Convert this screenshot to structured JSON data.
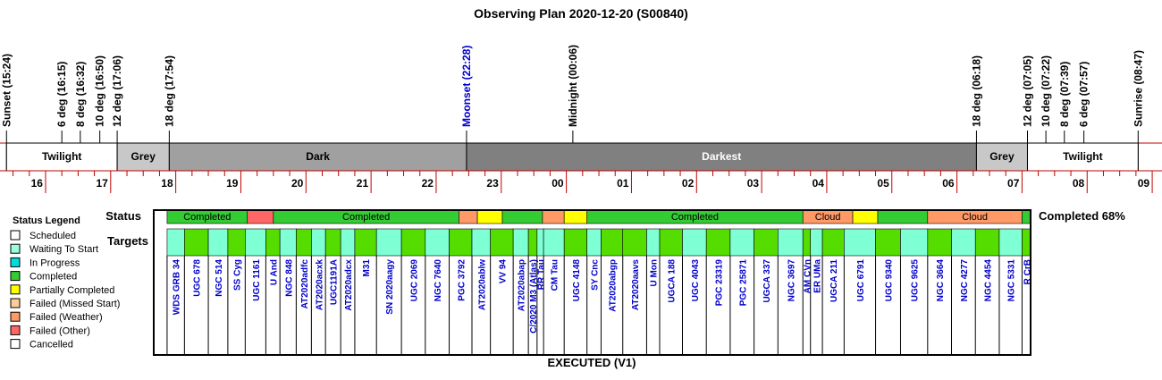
{
  "title": "Observing Plan 2020-12-20 (S00840)",
  "footer": "EXECUTED (V1)",
  "row_labels": {
    "status": "Status",
    "targets": "Targets"
  },
  "completion": "Completed 68%",
  "colors": {
    "line": "#c00000",
    "Twilight": "#ffffff",
    "Grey": "#c8c8c8",
    "Dark": "#a0a0a0",
    "Darkest": "#808080",
    "Completed": "#33cc33",
    "Partially Completed": "#ffff00",
    "Failed (Weather)": "#ff9966",
    "Failed (Other)": "#ff6666",
    "Waiting To Start": "#99ffdd",
    "target_target": "#7fffd4",
    "target_completed": "#55dd00",
    "moonset_text": "#0000cc"
  },
  "legend": {
    "title": "Status Legend",
    "items": [
      {
        "label": "Scheduled",
        "color": "#ffffff"
      },
      {
        "label": "Waiting To Start",
        "color": "#99ffdd"
      },
      {
        "label": "In Progress",
        "color": "#00dddd"
      },
      {
        "label": "Completed",
        "color": "#33cc33"
      },
      {
        "label": "Partially Completed",
        "color": "#ffff00"
      },
      {
        "label": "Failed (Missed Start)",
        "color": "#ffcc99"
      },
      {
        "label": "Failed (Weather)",
        "color": "#ff9966"
      },
      {
        "label": "Failed (Other)",
        "color": "#ff6666"
      },
      {
        "label": "Cancelled",
        "color": "#ffffff"
      }
    ]
  },
  "timeline": {
    "start_hour": 15.3,
    "end_hour": 33.15,
    "hour_labels": [
      "16",
      "17",
      "18",
      "19",
      "20",
      "21",
      "22",
      "23",
      "00",
      "01",
      "02",
      "03",
      "04",
      "05",
      "06",
      "07",
      "08",
      "09"
    ],
    "events": [
      {
        "label": "Sunset (15:24)",
        "time": "15:24"
      },
      {
        "label": "6 deg (16:15)",
        "time": "16:15"
      },
      {
        "label": "8 deg (16:32)",
        "time": "16:32"
      },
      {
        "label": "10 deg (16:50)",
        "time": "16:50"
      },
      {
        "label": "12 deg (17:06)",
        "time": "17:06"
      },
      {
        "label": "18 deg (17:54)",
        "time": "17:54"
      },
      {
        "label": "Moonset (22:28)",
        "time": "22:28",
        "moon": true
      },
      {
        "label": "Midnight (00:06)",
        "time": "24:06"
      },
      {
        "label": "18 deg (06:18)",
        "time": "30:18"
      },
      {
        "label": "12 deg (07:05)",
        "time": "31:05"
      },
      {
        "label": "10 deg (07:22)",
        "time": "31:22"
      },
      {
        "label": "8 deg (07:39)",
        "time": "31:39"
      },
      {
        "label": "6 deg (07:57)",
        "time": "31:57"
      },
      {
        "label": "Sunrise (08:47)",
        "time": "32:47"
      }
    ],
    "bands": [
      {
        "label": "Twilight",
        "start": "15:24",
        "end": "17:06",
        "kind": "Twilight"
      },
      {
        "label": "Grey",
        "start": "17:06",
        "end": "17:54",
        "kind": "Grey"
      },
      {
        "label": "Dark",
        "start": "17:54",
        "end": "22:28",
        "kind": "Dark"
      },
      {
        "label": "Darkest",
        "start": "22:28",
        "end": "30:18",
        "kind": "Darkest"
      },
      {
        "label": "Grey",
        "start": "30:18",
        "end": "31:05",
        "kind": "Grey"
      },
      {
        "label": "Twilight",
        "start": "31:05",
        "end": "32:47",
        "kind": "Twilight"
      }
    ]
  },
  "status_segments": [
    {
      "start": "17:52",
      "end": "19:06",
      "status": "Completed",
      "label": "Completed"
    },
    {
      "start": "19:06",
      "end": "19:30",
      "status": "Failed (Other)",
      "label": ""
    },
    {
      "start": "19:30",
      "end": "22:21",
      "status": "Completed",
      "label": "Completed"
    },
    {
      "start": "22:21",
      "end": "22:38",
      "status": "Failed (Weather)",
      "label": ""
    },
    {
      "start": "22:38",
      "end": "23:01",
      "status": "Partially Completed",
      "label": ""
    },
    {
      "start": "23:01",
      "end": "23:38",
      "status": "Completed",
      "label": ""
    },
    {
      "start": "23:38",
      "end": "23:58",
      "status": "Failed (Weather)",
      "label": ""
    },
    {
      "start": "23:58",
      "end": "24:19",
      "status": "Partially Completed",
      "label": ""
    },
    {
      "start": "24:19",
      "end": "27:38",
      "status": "Completed",
      "label": "Completed"
    },
    {
      "start": "27:38",
      "end": "28:24",
      "status": "Failed (Weather)",
      "label": "Cloud"
    },
    {
      "start": "28:24",
      "end": "28:47",
      "status": "Partially Completed",
      "label": ""
    },
    {
      "start": "28:47",
      "end": "29:33",
      "status": "Completed",
      "label": ""
    },
    {
      "start": "29:33",
      "end": "31:00",
      "status": "Failed (Weather)",
      "label": "Cloud"
    },
    {
      "start": "31:00",
      "end": "31:08",
      "status": "Completed",
      "label": ""
    }
  ],
  "targets": [
    {
      "name": "WDS GRB 34",
      "start": "17:52",
      "end": "18:08",
      "done": false
    },
    {
      "name": "UGC 678",
      "start": "18:08",
      "end": "18:30",
      "done": true
    },
    {
      "name": "NGC 514",
      "start": "18:30",
      "end": "18:48",
      "done": false
    },
    {
      "name": "SS Cyg",
      "start": "18:48",
      "end": "19:04",
      "done": true
    },
    {
      "name": "UGC 1161",
      "start": "19:04",
      "end": "19:23",
      "done": false
    },
    {
      "name": "U And",
      "start": "19:23",
      "end": "19:36",
      "done": true
    },
    {
      "name": "NGC 848",
      "start": "19:36",
      "end": "19:51",
      "done": false
    },
    {
      "name": "AT2020adfc",
      "start": "19:51",
      "end": "20:05",
      "done": true
    },
    {
      "name": "AT2020acxk",
      "start": "20:05",
      "end": "20:18",
      "done": false
    },
    {
      "name": "UGC1191A",
      "start": "20:18",
      "end": "20:32",
      "done": true
    },
    {
      "name": "AT2020adcx",
      "start": "20:32",
      "end": "20:45",
      "done": false
    },
    {
      "name": "M31",
      "start": "20:45",
      "end": "21:05",
      "done": true
    },
    {
      "name": "SN 2020aagy",
      "start": "21:05",
      "end": "21:28",
      "done": false
    },
    {
      "name": "UGC 2069",
      "start": "21:28",
      "end": "21:50",
      "done": true
    },
    {
      "name": "NGC 7640",
      "start": "21:50",
      "end": "22:12",
      "done": false
    },
    {
      "name": "PGC 3792",
      "start": "22:12",
      "end": "22:33",
      "done": true
    },
    {
      "name": "AT2020ablw",
      "start": "22:33",
      "end": "22:50",
      "done": false
    },
    {
      "name": "VV 94",
      "start": "22:50",
      "end": "23:11",
      "done": true
    },
    {
      "name": "AT2020abap",
      "start": "23:11",
      "end": "23:25",
      "done": false
    },
    {
      "name": "C/2020 M3 (Atlas)",
      "start": "23:25",
      "end": "23:33",
      "done": true
    },
    {
      "name": "RR Tau",
      "start": "23:33",
      "end": "23:39",
      "done": false
    },
    {
      "name": "CM Tau",
      "start": "23:39",
      "end": "23:58",
      "done": false
    },
    {
      "name": "UGC 4148",
      "start": "23:58",
      "end": "24:19",
      "done": true
    },
    {
      "name": "SY Cnc",
      "start": "24:19",
      "end": "24:32",
      "done": false
    },
    {
      "name": "AT2020abgp",
      "start": "24:32",
      "end": "24:52",
      "done": true
    },
    {
      "name": "AT2020aavs",
      "start": "24:52",
      "end": "25:14",
      "done": true
    },
    {
      "name": "U Mon",
      "start": "25:14",
      "end": "25:26",
      "done": false
    },
    {
      "name": "UGCA 188",
      "start": "25:26",
      "end": "25:47",
      "done": true
    },
    {
      "name": "UGC 4043",
      "start": "25:47",
      "end": "26:09",
      "done": false
    },
    {
      "name": "PGC 23319",
      "start": "26:09",
      "end": "26:31",
      "done": true
    },
    {
      "name": "PGC 25871",
      "start": "26:31",
      "end": "26:53",
      "done": false
    },
    {
      "name": "UGCA 337",
      "start": "26:53",
      "end": "27:15",
      "done": true
    },
    {
      "name": "NGC 3697",
      "start": "27:15",
      "end": "27:38",
      "done": false
    },
    {
      "name": "AM CVn",
      "start": "27:38",
      "end": "27:45",
      "done": true
    },
    {
      "name": "ER UMa",
      "start": "27:45",
      "end": "27:56",
      "done": false
    },
    {
      "name": "UGCA 211",
      "start": "27:56",
      "end": "28:16",
      "done": true
    },
    {
      "name": "UGC 6791",
      "start": "28:16",
      "end": "28:45",
      "done": false
    },
    {
      "name": "UGC 9340",
      "start": "28:45",
      "end": "29:08",
      "done": true
    },
    {
      "name": "UGC 9625",
      "start": "29:08",
      "end": "29:33",
      "done": false
    },
    {
      "name": "NGC 3664",
      "start": "29:33",
      "end": "29:55",
      "done": true
    },
    {
      "name": "NGC 4277",
      "start": "29:55",
      "end": "30:17",
      "done": false
    },
    {
      "name": "NGC 4454",
      "start": "30:17",
      "end": "30:39",
      "done": true
    },
    {
      "name": "NGC 5331",
      "start": "30:39",
      "end": "31:00",
      "done": false
    },
    {
      "name": "R CrB",
      "start": "31:00",
      "end": "31:08",
      "done": true
    }
  ]
}
